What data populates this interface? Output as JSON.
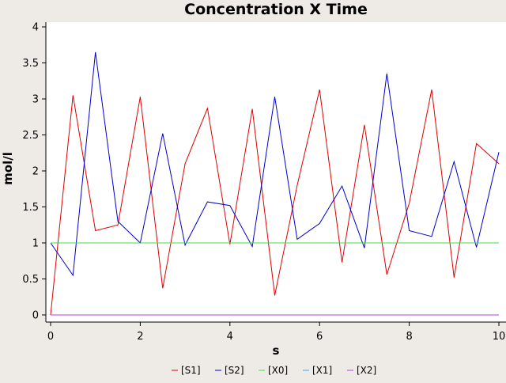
{
  "chart_data": {
    "type": "line",
    "title": "Concentration X Time",
    "xlabel": "s",
    "ylabel": "mol/l",
    "xlim": [
      0,
      10
    ],
    "ylim": [
      0,
      4
    ],
    "xticks": [
      "0",
      "2",
      "4",
      "6",
      "8",
      "10"
    ],
    "yticks": [
      "0",
      "0.5",
      "1",
      "1.5",
      "2",
      "2.5",
      "3",
      "3.5",
      "4"
    ],
    "grid": false,
    "legend_position": "bottom",
    "x": [
      0,
      0.5,
      1,
      1.5,
      2,
      2.5,
      3,
      3.5,
      4,
      4.5,
      5,
      5.5,
      6,
      6.5,
      7,
      7.5,
      8,
      8.5,
      9,
      9.5,
      10
    ],
    "series": [
      {
        "name": "[S1]",
        "color": "#dd0000",
        "values": [
          0,
          3.05,
          1.17,
          1.25,
          3.03,
          0.37,
          2.1,
          2.87,
          0.98,
          2.86,
          0.27,
          1.8,
          3.13,
          0.73,
          2.64,
          0.56,
          1.55,
          3.13,
          0.52,
          2.38,
          2.1
        ]
      },
      {
        "name": "[S2]",
        "color": "#0000cc",
        "values": [
          1.0,
          0.55,
          3.65,
          1.3,
          1.0,
          2.52,
          0.97,
          1.57,
          1.52,
          0.95,
          3.03,
          1.05,
          1.27,
          1.79,
          0.93,
          3.35,
          1.17,
          1.09,
          2.13,
          0.94,
          2.26
        ]
      },
      {
        "name": "[X0]",
        "color": "#44dd44",
        "values": [
          1,
          1,
          1,
          1,
          1,
          1,
          1,
          1,
          1,
          1,
          1,
          1,
          1,
          1,
          1,
          1,
          1,
          1,
          1,
          1,
          1
        ]
      },
      {
        "name": "[X1]",
        "color": "#44aaee",
        "values": [
          0,
          0,
          0,
          0,
          0,
          0,
          0,
          0,
          0,
          0,
          0,
          0,
          0,
          0,
          0,
          0,
          0,
          0,
          0,
          0,
          0
        ]
      },
      {
        "name": "[X2]",
        "color": "#aa44dd",
        "values": [
          0,
          0,
          0,
          0,
          0,
          0,
          0,
          0,
          0,
          0,
          0,
          0,
          0,
          0,
          0,
          0,
          0,
          0,
          0,
          0,
          0
        ]
      }
    ]
  }
}
